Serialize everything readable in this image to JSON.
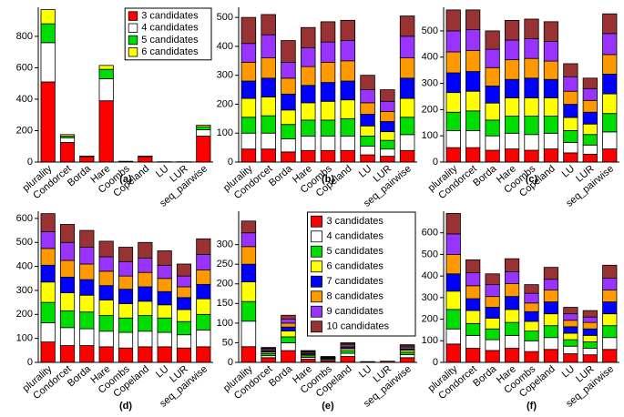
{
  "chart_data": [
    {
      "type": "stacked_bar",
      "label": "(a)",
      "legend": "upper right",
      "categories": [
        "plurality",
        "Condorcet",
        "Borda",
        "Hare",
        "Coombs",
        "Copeland",
        "LU",
        "LUR",
        "seq_pairwise"
      ],
      "ylim": [
        0,
        985
      ],
      "yticks": [
        0,
        200,
        400,
        600,
        800
      ],
      "series": [
        {
          "name": "3 candidates",
          "color": "#ff0000",
          "values": [
            510,
            125,
            35,
            390,
            5,
            35,
            2,
            2,
            165
          ]
        },
        {
          "name": "4 candidates",
          "color": "#ffffff",
          "values": [
            250,
            30,
            2,
            140,
            0,
            3,
            0,
            0,
            40
          ]
        },
        {
          "name": "5 candidates",
          "color": "#00dd00",
          "values": [
            120,
            10,
            1,
            60,
            0,
            0,
            0,
            0,
            20
          ]
        },
        {
          "name": "6 candidates",
          "color": "#ffff00",
          "values": [
            90,
            10,
            0,
            25,
            0,
            0,
            0,
            0,
            10
          ]
        }
      ]
    },
    {
      "type": "stacked_bar",
      "label": "(b)",
      "categories": [
        "plurality",
        "Condorcet",
        "Borda",
        "Hare",
        "Coombs",
        "Copeland",
        "LU",
        "LUR",
        "seq_pairwise"
      ],
      "ylim": [
        0,
        535
      ],
      "yticks": [
        0,
        100,
        200,
        300,
        400,
        500
      ],
      "series": [
        {
          "color": "#ff0000",
          "values": [
            45,
            45,
            35,
            40,
            40,
            40,
            25,
            20,
            40
          ]
        },
        {
          "color": "#ffffff",
          "values": [
            55,
            55,
            45,
            50,
            50,
            50,
            30,
            25,
            55
          ]
        },
        {
          "color": "#00dd00",
          "values": [
            55,
            60,
            50,
            55,
            55,
            60,
            35,
            30,
            60
          ]
        },
        {
          "color": "#ffff00",
          "values": [
            65,
            65,
            50,
            60,
            65,
            65,
            35,
            30,
            65
          ]
        },
        {
          "color": "#0000ff",
          "values": [
            60,
            65,
            55,
            60,
            65,
            65,
            40,
            35,
            70
          ]
        },
        {
          "color": "#ff9900",
          "values": [
            65,
            70,
            55,
            65,
            70,
            70,
            40,
            35,
            70
          ]
        },
        {
          "color": "#9933ff",
          "values": [
            65,
            80,
            55,
            65,
            70,
            70,
            45,
            35,
            75
          ]
        },
        {
          "color": "#993333",
          "values": [
            90,
            70,
            75,
            70,
            70,
            70,
            50,
            40,
            70
          ]
        }
      ]
    },
    {
      "type": "stacked_bar",
      "label": "(c)",
      "categories": [
        "plurality",
        "Condorcet",
        "Borda",
        "Hare",
        "Coombs",
        "Copeland",
        "LU",
        "LUR",
        "seq_pairwise"
      ],
      "ylim": [
        0,
        590
      ],
      "yticks": [
        0,
        100,
        200,
        300,
        400,
        500
      ],
      "series": [
        {
          "color": "#ff0000",
          "values": [
            55,
            55,
            45,
            50,
            45,
            50,
            35,
            30,
            50
          ]
        },
        {
          "color": "#ffffff",
          "values": [
            65,
            65,
            55,
            60,
            60,
            60,
            40,
            35,
            65
          ]
        },
        {
          "color": "#00dd00",
          "values": [
            70,
            75,
            60,
            65,
            70,
            65,
            45,
            40,
            70
          ]
        },
        {
          "color": "#ffff00",
          "values": [
            75,
            75,
            65,
            70,
            70,
            70,
            50,
            40,
            75
          ]
        },
        {
          "color": "#0000ff",
          "values": [
            75,
            75,
            65,
            70,
            75,
            70,
            50,
            45,
            75
          ]
        },
        {
          "color": "#ff9900",
          "values": [
            80,
            80,
            70,
            75,
            75,
            70,
            50,
            45,
            75
          ]
        },
        {
          "color": "#9933ff",
          "values": [
            80,
            80,
            70,
            75,
            75,
            75,
            55,
            45,
            80
          ]
        },
        {
          "color": "#993333",
          "values": [
            80,
            75,
            70,
            75,
            75,
            75,
            50,
            40,
            75
          ]
        }
      ]
    },
    {
      "type": "stacked_bar",
      "label": "(d)",
      "categories": [
        "plurality",
        "Condorcet",
        "Borda",
        "Hare",
        "Coombs",
        "Copeland",
        "LU",
        "LUR",
        "seq_pairwise"
      ],
      "ylim": [
        0,
        630
      ],
      "yticks": [
        0,
        100,
        200,
        300,
        400,
        500,
        600
      ],
      "series": [
        {
          "color": "#ff0000",
          "values": [
            85,
            70,
            70,
            65,
            60,
            65,
            65,
            60,
            65
          ]
        },
        {
          "color": "#ffffff",
          "values": [
            80,
            75,
            70,
            65,
            65,
            65,
            60,
            55,
            70
          ]
        },
        {
          "color": "#00dd00",
          "values": [
            85,
            70,
            70,
            65,
            60,
            65,
            60,
            55,
            65
          ]
        },
        {
          "color": "#ffff00",
          "values": [
            85,
            75,
            70,
            65,
            60,
            60,
            55,
            50,
            65
          ]
        },
        {
          "color": "#0000ff",
          "values": [
            70,
            65,
            65,
            60,
            60,
            60,
            55,
            50,
            60
          ]
        },
        {
          "color": "#ff9900",
          "values": [
            70,
            70,
            65,
            60,
            55,
            60,
            55,
            45,
            60
          ]
        },
        {
          "color": "#9933ff",
          "values": [
            70,
            75,
            70,
            60,
            60,
            60,
            55,
            45,
            65
          ]
        },
        {
          "color": "#993333",
          "values": [
            75,
            75,
            70,
            65,
            60,
            65,
            60,
            50,
            65
          ]
        }
      ]
    },
    {
      "type": "stacked_bar",
      "label": "(e)",
      "legend": "upper right",
      "categories": [
        "plurality",
        "Condorcet",
        "Borda",
        "Hare",
        "Coombs",
        "Copeland",
        "LU",
        "LUR",
        "seq_pairwise"
      ],
      "ylim": [
        0,
        385
      ],
      "yticks": [
        0,
        50,
        100,
        150,
        200,
        250,
        300
      ],
      "series": [
        {
          "name": "3 candidates",
          "color": "#ff0000",
          "values": [
            40,
            12,
            30,
            8,
            4,
            15,
            2,
            3,
            12
          ]
        },
        {
          "name": "4 candidates",
          "color": "#ffffff",
          "values": [
            65,
            5,
            20,
            5,
            3,
            8,
            0,
            0,
            8
          ]
        },
        {
          "name": "5 candidates",
          "color": "#00dd00",
          "values": [
            50,
            5,
            15,
            4,
            2,
            7,
            0,
            0,
            6
          ]
        },
        {
          "name": "6 candidates",
          "color": "#ffff00",
          "values": [
            50,
            4,
            15,
            3,
            2,
            5,
            0,
            0,
            5
          ]
        },
        {
          "name": "7 candidates",
          "color": "#0000ff",
          "values": [
            45,
            4,
            10,
            3,
            1,
            5,
            0,
            0,
            4
          ]
        },
        {
          "name": "8 candidates",
          "color": "#ff9900",
          "values": [
            45,
            3,
            10,
            3,
            1,
            4,
            0,
            0,
            4
          ]
        },
        {
          "name": "9 candidates",
          "color": "#9933ff",
          "values": [
            35,
            3,
            10,
            2,
            1,
            3,
            0,
            0,
            3
          ]
        },
        {
          "name": "10 candidates",
          "color": "#993333",
          "values": [
            30,
            2,
            10,
            2,
            1,
            3,
            0,
            0,
            3
          ]
        }
      ]
    },
    {
      "type": "stacked_bar",
      "label": "(f)",
      "categories": [
        "plurality",
        "Condorcet",
        "Borda",
        "Hare",
        "Coombs",
        "Copeland",
        "LU",
        "LUR",
        "seq_pairwise"
      ],
      "ylim": [
        0,
        700
      ],
      "yticks": [
        0,
        100,
        200,
        300,
        400,
        500,
        600
      ],
      "series": [
        {
          "color": "#ff0000",
          "values": [
            85,
            65,
            55,
            65,
            50,
            60,
            40,
            35,
            60
          ]
        },
        {
          "color": "#ffffff",
          "values": [
            70,
            60,
            50,
            60,
            50,
            55,
            35,
            30,
            55
          ]
        },
        {
          "color": "#00dd00",
          "values": [
            90,
            55,
            50,
            60,
            45,
            55,
            30,
            30,
            55
          ]
        },
        {
          "color": "#ffff00",
          "values": [
            85,
            60,
            50,
            60,
            45,
            55,
            30,
            30,
            55
          ]
        },
        {
          "color": "#0000ff",
          "values": [
            80,
            55,
            50,
            60,
            45,
            55,
            30,
            30,
            55
          ]
        },
        {
          "color": "#ff9900",
          "values": [
            90,
            60,
            50,
            60,
            40,
            55,
            30,
            30,
            55
          ]
        },
        {
          "color": "#9933ff",
          "values": [
            95,
            60,
            55,
            55,
            45,
            50,
            30,
            25,
            55
          ]
        },
        {
          "color": "#993333",
          "values": [
            95,
            60,
            50,
            60,
            40,
            55,
            30,
            30,
            60
          ]
        }
      ]
    }
  ]
}
